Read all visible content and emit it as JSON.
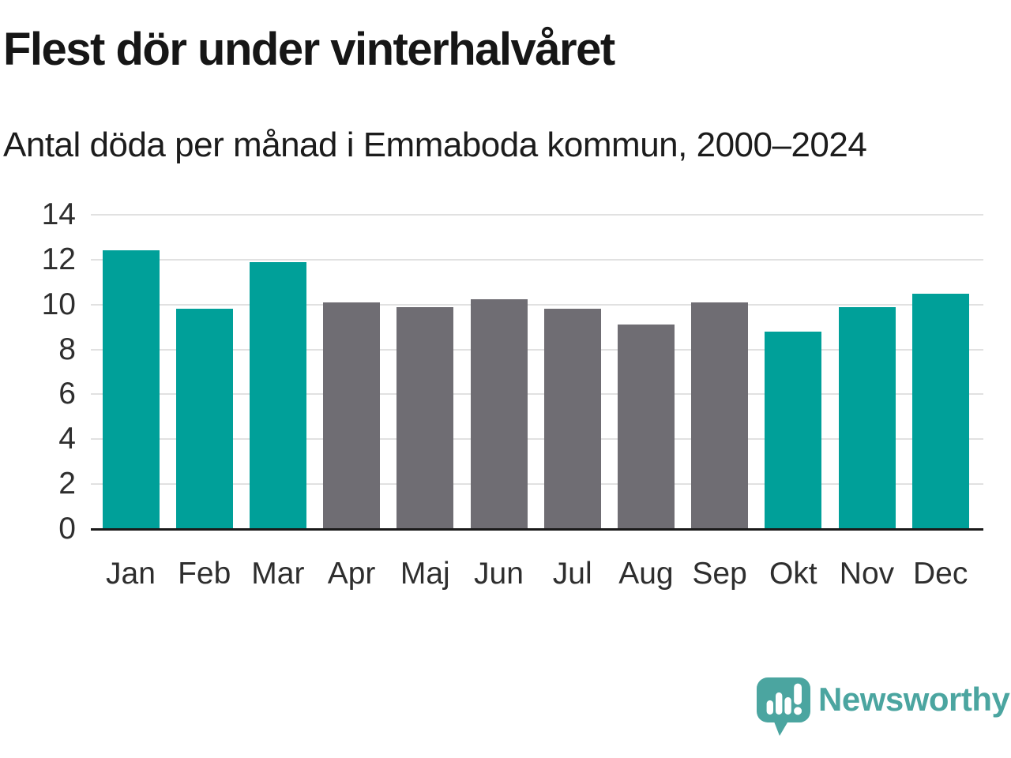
{
  "chart_data": {
    "type": "bar",
    "title": "Flest dör under vinterhalvåret",
    "subtitle": "Antal döda per månad i Emmaboda kommun, 2000–2024",
    "categories": [
      "Jan",
      "Feb",
      "Mar",
      "Apr",
      "Maj",
      "Jun",
      "Jul",
      "Aug",
      "Sep",
      "Okt",
      "Nov",
      "Dec"
    ],
    "values": [
      12.4,
      9.8,
      11.9,
      10.1,
      9.9,
      10.25,
      9.8,
      9.1,
      10.1,
      8.8,
      9.9,
      10.5
    ],
    "highlighted_categories": [
      "Jan",
      "Feb",
      "Mar",
      "Okt",
      "Nov",
      "Dec"
    ],
    "colors": {
      "highlight": "#00a099",
      "default": "#6f6d73",
      "gridline": "#e1e1e1",
      "axis_line": "#1a1a1a",
      "tick_label": "#2e2e2e"
    },
    "ylim": [
      0,
      14
    ],
    "yticks": [
      0,
      2,
      4,
      6,
      8,
      10,
      12,
      14
    ],
    "xlabel": "",
    "ylabel": "",
    "grid": "horizontal",
    "legend": "none"
  },
  "footer": {
    "brand": "Newsworthy",
    "brand_color": "#4ba5a0"
  }
}
